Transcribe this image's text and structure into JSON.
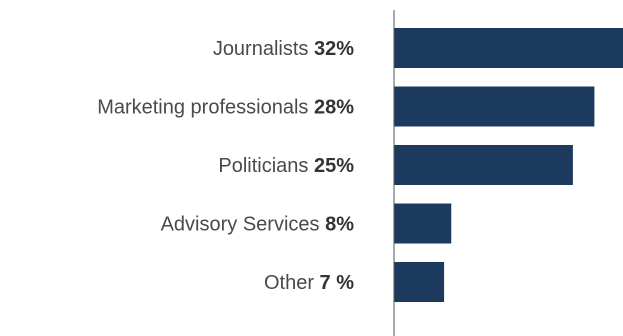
{
  "chart_data": {
    "type": "bar",
    "orientation": "horizontal",
    "title": "",
    "xlabel": "",
    "ylabel": "",
    "xlim": [
      0,
      32
    ],
    "grid": false,
    "legend": "none",
    "bar_color": "#1b3a5e",
    "categories": [
      "Journalists",
      "Marketing professionals",
      "Politicians",
      "Advisory Services",
      "Other"
    ],
    "values": [
      32,
      28,
      25,
      8,
      7
    ],
    "value_labels": [
      "32%",
      "28%",
      "25%",
      "8%",
      "7 %"
    ]
  }
}
